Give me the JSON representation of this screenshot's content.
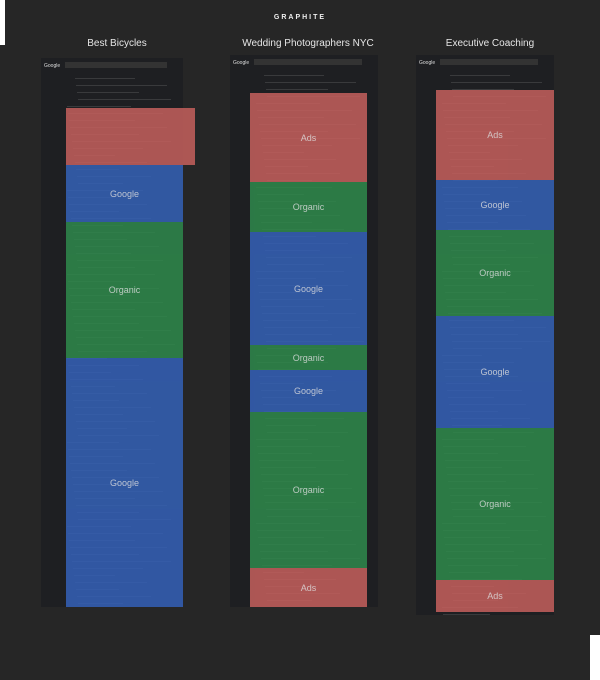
{
  "header": {
    "brand": "GRAPHITE"
  },
  "columns": [
    {
      "title": "Best Bicycles",
      "logo": "Google",
      "segments": [
        {
          "color": "#c6605d"
        },
        {
          "color": "#3562b8",
          "label": "Google"
        },
        {
          "color": "#2f8a4c",
          "label": "Organic"
        },
        {
          "color": "#3562b8",
          "label": "Google"
        }
      ]
    },
    {
      "title": "Wedding Photographers NYC",
      "logo": "Google",
      "segments": [
        {
          "color": "#c6605d",
          "label": "Ads"
        },
        {
          "color": "#2f8a4c",
          "label": "Organic"
        },
        {
          "color": "#3562b8",
          "label": "Google"
        },
        {
          "color": "#2f8a4c",
          "label": "Organic"
        },
        {
          "color": "#3562b8",
          "label": "Google"
        },
        {
          "color": "#2f8a4c",
          "label": "Organic"
        },
        {
          "color": "#c6605d",
          "label": "Ads"
        }
      ]
    },
    {
      "title": "Executive Coaching",
      "logo": "Google",
      "segments": [
        {
          "color": "#c6605d",
          "label": "Ads"
        },
        {
          "color": "#3562b8",
          "label": "Google"
        },
        {
          "color": "#2f8a4c",
          "label": "Organic"
        },
        {
          "color": "#3562b8",
          "label": "Google"
        },
        {
          "color": "#2f8a4c",
          "label": "Organic"
        },
        {
          "color": "#c6605d",
          "label": "Ads"
        }
      ]
    }
  ]
}
